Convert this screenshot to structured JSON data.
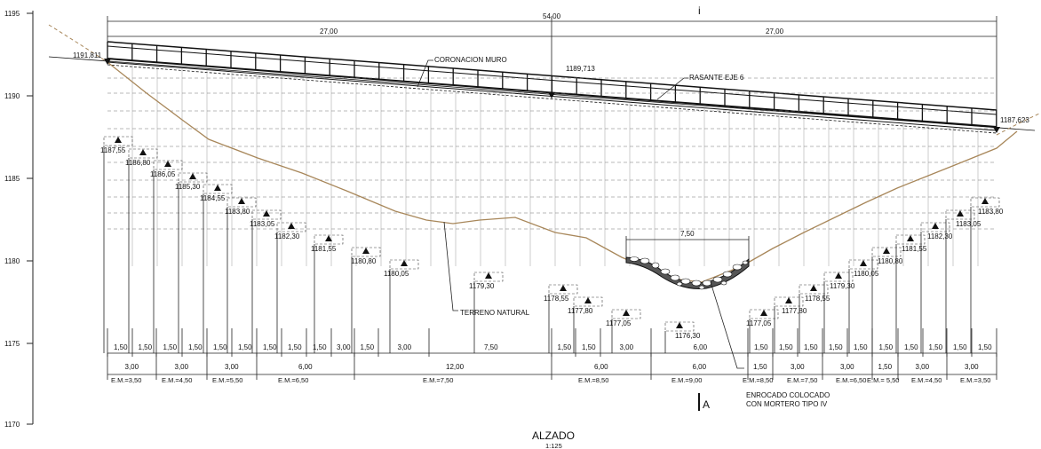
{
  "drawing": {
    "title": "ALZADO",
    "scale": "1:125",
    "section_mark_top": "i",
    "section_mark_bottom": "A"
  },
  "elevation_axis": {
    "ticks": [
      "1195",
      "1190",
      "1185",
      "1180",
      "1175",
      "1170"
    ]
  },
  "top_dimensions": {
    "total": "54,00",
    "left_half": "27,00",
    "right_half": "27,00"
  },
  "annotations": {
    "coronacion": "CORONACION MURO",
    "rasante": "RASANTE EJE 6",
    "terreno": "TERRENO NATURAL",
    "enrocado_line1": "ENROCADO COLOCADO",
    "enrocado_line2": "CON MORTERO TIPO IV",
    "enrocado_width": "7,50"
  },
  "top_levels": {
    "left": "1191,811",
    "center": "1189,713",
    "right": "1187,623"
  },
  "footing_levels": [
    "1187,55",
    "1186,80",
    "1186,05",
    "1185,30",
    "1184,55",
    "1183,80",
    "1183,05",
    "1182,30",
    "1181,55",
    "1180,80",
    "1180,05",
    "1179,30",
    "1178,55",
    "1177,80",
    "1177,05",
    "1176,30",
    "1177,05",
    "1177,80",
    "1178,55",
    "1179,30",
    "1180,05",
    "1180,80",
    "1181,55",
    "1182,30",
    "1183,05",
    "1183,80"
  ],
  "step_dims": [
    "1,50",
    "1,50",
    "1,50",
    "1,50",
    "1,50",
    "1,50",
    "1,50",
    "1,50",
    "1,50",
    "3,00",
    "1,50",
    "3,00",
    "7,50",
    "1,50",
    "1,50",
    "3,00",
    "6,00",
    "1,50",
    "1,50",
    "1,50",
    "1,50",
    "1,50",
    "1,50",
    "1,50",
    "1,50",
    "1,50",
    "1,50"
  ],
  "group_dims": [
    "3,00",
    "3,00",
    "3,00",
    "6,00",
    "12,00",
    "6,00",
    "6,00",
    "1,50",
    "3,00",
    "3,00",
    "1,50",
    "3,00",
    "3,00"
  ],
  "em_labels": [
    "E.M.=3,50",
    "E.M.=4,50",
    "E.M.=5,50",
    "E.M.=6,50",
    "E.M.=7,50",
    "E.M.=8,50",
    "E.M.=9,00",
    "E.M.=8,50",
    "E.M.=7,50",
    "E.M.=6,50",
    "E.M.= 5,50",
    "E.M.=4,50",
    "E.M.=3,50"
  ]
}
